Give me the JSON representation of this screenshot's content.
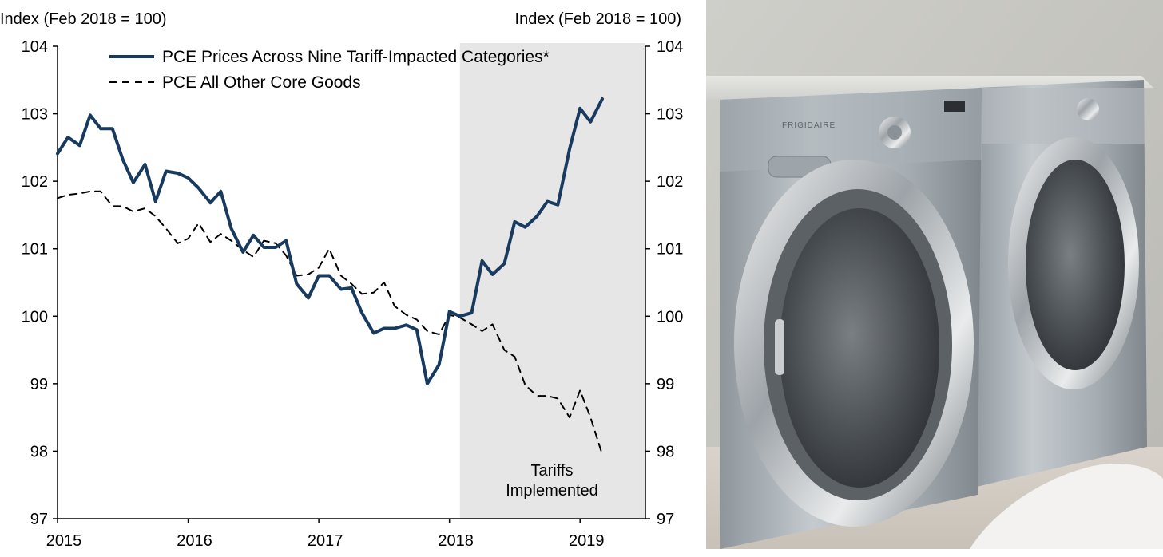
{
  "chart_data": {
    "type": "line",
    "title": "",
    "left_axis_label": "Index (Feb 2018 = 100)",
    "right_axis_label": "Index (Feb 2018 = 100)",
    "ylim": [
      97,
      104
    ],
    "yticks": [
      "97",
      "98",
      "99",
      "100",
      "101",
      "102",
      "103",
      "104"
    ],
    "xlim": [
      2015.0,
      2019.5
    ],
    "xticks": [
      "2015",
      "2016",
      "2017",
      "2018",
      "2019"
    ],
    "shaded_region": {
      "from": 2018.08,
      "to": 2019.5,
      "color": "#e6e6e6"
    },
    "annotation": [
      "Tariffs",
      "Implemented"
    ],
    "legend_position": "top-left",
    "series": [
      {
        "name": "PCE Prices Across Nine Tariff-Impacted Categories*",
        "style": "solid",
        "color": "#173a5e",
        "x": [
          2015.0,
          2015.08,
          2015.17,
          2015.25,
          2015.33,
          2015.42,
          2015.5,
          2015.58,
          2015.67,
          2015.75,
          2015.83,
          2015.92,
          2016.0,
          2016.08,
          2016.17,
          2016.25,
          2016.33,
          2016.42,
          2016.5,
          2016.58,
          2016.67,
          2016.75,
          2016.83,
          2016.92,
          2017.0,
          2017.08,
          2017.17,
          2017.25,
          2017.33,
          2017.42,
          2017.5,
          2017.58,
          2017.67,
          2017.75,
          2017.83,
          2017.92,
          2018.0,
          2018.08,
          2018.17,
          2018.25,
          2018.33,
          2018.42,
          2018.5,
          2018.58,
          2018.67,
          2018.75,
          2018.83,
          2018.92,
          2019.0,
          2019.08,
          2019.17
        ],
        "values": [
          102.41,
          102.65,
          102.53,
          102.98,
          102.78,
          102.78,
          102.32,
          101.98,
          102.25,
          101.7,
          102.15,
          102.12,
          102.05,
          101.9,
          101.68,
          101.85,
          101.3,
          100.95,
          101.2,
          101.02,
          101.02,
          101.12,
          100.48,
          100.27,
          100.6,
          100.6,
          100.4,
          100.42,
          100.05,
          99.75,
          99.82,
          99.82,
          99.87,
          99.8,
          99.0,
          99.28,
          100.07,
          100.0,
          100.05,
          100.82,
          100.62,
          100.78,
          101.4,
          101.32,
          101.48,
          101.7,
          101.65,
          102.48,
          103.08,
          102.88,
          103.22
        ]
      },
      {
        "name": "PCE All Other Core Goods",
        "style": "dashed",
        "color": "#000000",
        "x": [
          2015.0,
          2015.08,
          2015.17,
          2015.25,
          2015.33,
          2015.42,
          2015.5,
          2015.58,
          2015.67,
          2015.75,
          2015.83,
          2015.92,
          2016.0,
          2016.08,
          2016.17,
          2016.25,
          2016.33,
          2016.42,
          2016.5,
          2016.58,
          2016.67,
          2016.75,
          2016.83,
          2016.92,
          2017.0,
          2017.08,
          2017.17,
          2017.25,
          2017.33,
          2017.42,
          2017.5,
          2017.58,
          2017.67,
          2017.75,
          2017.83,
          2017.92,
          2018.0,
          2018.08,
          2018.17,
          2018.25,
          2018.33,
          2018.42,
          2018.5,
          2018.58,
          2018.67,
          2018.75,
          2018.83,
          2018.92,
          2019.0,
          2019.08,
          2019.17
        ],
        "values": [
          101.75,
          101.8,
          101.82,
          101.85,
          101.85,
          101.63,
          101.63,
          101.55,
          101.6,
          101.48,
          101.3,
          101.08,
          101.15,
          101.38,
          101.1,
          101.22,
          101.12,
          100.98,
          100.88,
          101.12,
          101.08,
          100.9,
          100.6,
          100.62,
          100.72,
          101.0,
          100.6,
          100.48,
          100.33,
          100.35,
          100.5,
          100.15,
          100.02,
          99.95,
          99.78,
          99.73,
          100.02,
          99.98,
          99.88,
          99.78,
          99.88,
          99.5,
          99.4,
          98.98,
          98.82,
          98.82,
          98.78,
          98.5,
          98.9,
          98.5,
          97.95
        ]
      }
    ]
  },
  "photo": {
    "subject": "front-load-washer-and-dryer",
    "brand_text": "FRIGIDAIRE"
  }
}
